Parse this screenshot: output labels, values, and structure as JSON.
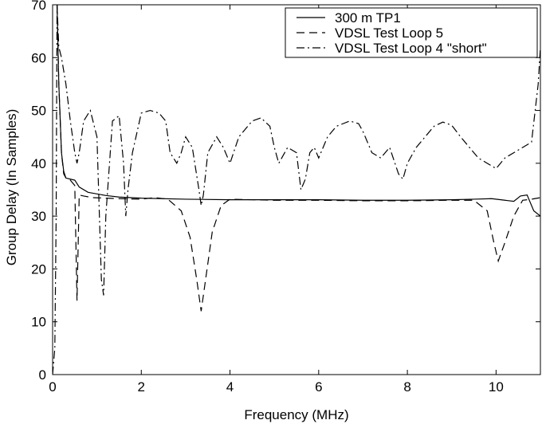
{
  "chart_data": {
    "type": "line",
    "title": "",
    "xlabel": "Frequency (MHz)",
    "ylabel": "Group Delay (In Samples)",
    "xlim": [
      0,
      11
    ],
    "ylim": [
      0,
      70
    ],
    "xticks": [
      0,
      2,
      4,
      6,
      8,
      10
    ],
    "yticks": [
      0,
      10,
      20,
      30,
      40,
      50,
      60,
      70
    ],
    "xtick_labels": [
      "0",
      "2",
      "4",
      "6",
      "8",
      "10"
    ],
    "ytick_labels": [
      "0",
      "10",
      "20",
      "30",
      "40",
      "50",
      "60",
      "70"
    ],
    "grid": false,
    "legend_position": "top-right",
    "series": [
      {
        "name": "300 m TP1",
        "style": "solid",
        "color": "#000000",
        "x": [
          0.1,
          0.14,
          0.2,
          0.25,
          0.3,
          0.4,
          0.5,
          0.6,
          0.8,
          1.0,
          1.2,
          1.5,
          2.0,
          3.0,
          4.0,
          5.0,
          6.0,
          7.0,
          8.0,
          9.0,
          9.5,
          9.9,
          10.2,
          10.4,
          10.55,
          10.7,
          10.85,
          11.0
        ],
        "y": [
          70,
          55,
          42,
          38.5,
          37.2,
          37.0,
          36.8,
          35.5,
          34.5,
          34.2,
          33.9,
          33.6,
          33.4,
          33.2,
          33.1,
          33.1,
          33.1,
          33.0,
          33.0,
          33.1,
          33.2,
          33.3,
          33.0,
          32.8,
          33.8,
          34.0,
          31.0,
          30.0
        ]
      },
      {
        "name": "VDSL Test Loop 5",
        "style": "dashed",
        "color": "#000000",
        "x": [
          0.1,
          0.14,
          0.2,
          0.25,
          0.3,
          0.4,
          0.5,
          0.55,
          0.6,
          0.7,
          0.9,
          1.2,
          1.5,
          2.0,
          2.3,
          2.6,
          2.9,
          3.1,
          3.25,
          3.35,
          3.45,
          3.6,
          3.8,
          4.0,
          5.0,
          6.0,
          7.0,
          8.0,
          9.0,
          9.5,
          9.8,
          9.95,
          10.05,
          10.2,
          10.4,
          10.6,
          10.8,
          11.0
        ],
        "y": [
          70,
          55,
          42,
          38,
          37.2,
          36.8,
          35.8,
          14,
          34,
          33.8,
          33.5,
          33.4,
          33.3,
          33.2,
          33.5,
          33.2,
          31,
          26,
          18,
          12,
          18,
          27,
          32,
          33.2,
          33.0,
          33.0,
          32.9,
          32.9,
          33.0,
          33.0,
          31,
          25,
          21.5,
          25,
          30,
          33,
          33.2,
          33.5
        ]
      },
      {
        "name": "VDSL Test Loop 4 \"short\"",
        "style": "dashdot",
        "color": "#000000",
        "x": [
          0.0,
          0.05,
          0.08,
          0.1,
          0.14,
          0.2,
          0.3,
          0.4,
          0.5,
          0.55,
          0.6,
          0.7,
          0.85,
          1.0,
          1.1,
          1.15,
          1.2,
          1.35,
          1.5,
          1.6,
          1.65,
          1.7,
          1.8,
          2.0,
          2.2,
          2.4,
          2.55,
          2.65,
          2.8,
          2.9,
          3.0,
          3.15,
          3.3,
          3.35,
          3.4,
          3.5,
          3.7,
          3.85,
          4.0,
          4.2,
          4.5,
          4.7,
          4.9,
          5.0,
          5.1,
          5.3,
          5.5,
          5.6,
          5.7,
          5.8,
          5.9,
          6.0,
          6.1,
          6.2,
          6.4,
          6.7,
          6.9,
          7.0,
          7.2,
          7.4,
          7.6,
          7.8,
          7.9,
          8.0,
          8.2,
          8.4,
          8.6,
          8.8,
          9.0,
          9.2,
          9.4,
          9.6,
          9.8,
          10.0,
          10.1,
          10.2,
          10.4,
          10.6,
          10.8,
          10.95,
          11.0
        ],
        "y": [
          0,
          5,
          30,
          70,
          62,
          60,
          55,
          48,
          42,
          40,
          42,
          48,
          50,
          45,
          18,
          15,
          30,
          48,
          49,
          40,
          30,
          35,
          42,
          49.5,
          50,
          49.5,
          48,
          42,
          40,
          42,
          45,
          43,
          35,
          32,
          34,
          42,
          45,
          43,
          40,
          45,
          48,
          48.6,
          47,
          43,
          40,
          43,
          42,
          35,
          37,
          42,
          43,
          41,
          43,
          45,
          47,
          48,
          47.5,
          46,
          42,
          41,
          43,
          38,
          37,
          40,
          43,
          45,
          47,
          47.8,
          47.2,
          45,
          43,
          41,
          40,
          39,
          40,
          41,
          42,
          43,
          44,
          55,
          62
        ]
      }
    ]
  }
}
